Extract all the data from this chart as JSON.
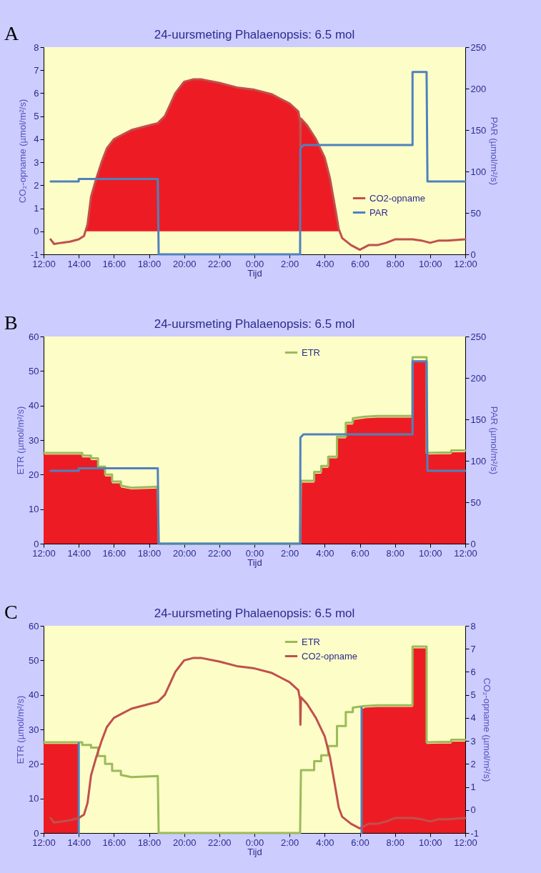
{
  "chart_data": [
    {
      "type": "line",
      "title": "24-uursmeting Phalaenopsis: 6.5 mol",
      "annotations": [
        "A"
      ],
      "xlabel": "Tijd",
      "ylabel": "CO₂-opname (µmol/m²/s)",
      "y2label": "PAR (µmol/m²/s)",
      "xlim": [
        "2000-01-01T12:00",
        "2000-01-02T12:00"
      ],
      "xticks": [
        {
          "value": "2000-01-01T12:00",
          "label": "12:00"
        },
        {
          "value": "2000-01-01T14:00",
          "label": "14:00"
        },
        {
          "value": "2000-01-01T16:00",
          "label": "16:00"
        },
        {
          "value": "2000-01-01T18:00",
          "label": "18:00"
        },
        {
          "value": "2000-01-01T20:00",
          "label": "20:00"
        },
        {
          "value": "2000-01-01T22:00",
          "label": "22:00"
        },
        {
          "value": "2000-01-02T00:00",
          "label": "0:00"
        },
        {
          "value": "2000-01-02T02:00",
          "label": "2:00"
        },
        {
          "value": "2000-01-02T04:00",
          "label": "4:00"
        },
        {
          "value": "2000-01-02T06:00",
          "label": "6:00"
        },
        {
          "value": "2000-01-02T08:00",
          "label": "8:00"
        },
        {
          "value": "2000-01-02T10:00",
          "label": "10:00"
        },
        {
          "value": "2000-01-02T12:00",
          "label": "12:00"
        }
      ],
      "ylim": [
        -1,
        8
      ],
      "yticks": [
        -1,
        0,
        1,
        2,
        3,
        4,
        5,
        6,
        7,
        8
      ],
      "y2lim": [
        0,
        250
      ],
      "y2ticks": [
        0,
        50,
        100,
        150,
        200,
        250
      ],
      "legend": "bottom right",
      "series": [
        {
          "type": "area",
          "color": "#ed1c24",
          "x": [
            "2000-01-01T14:24",
            "2000-01-01T14:30",
            "2000-01-01T14:42",
            "2000-01-01T15:00",
            "2000-01-01T15:18",
            "2000-01-01T15:36",
            "2000-01-01T16:00",
            "2000-01-01T16:30",
            "2000-01-01T17:00",
            "2000-01-01T17:30",
            "2000-01-01T18:00",
            "2000-01-01T18:30",
            "2000-01-01T18:54",
            "2000-01-01T19:12",
            "2000-01-01T19:30",
            "2000-01-01T20:00",
            "2000-01-01T20:30",
            "2000-01-01T21:00",
            "2000-01-01T22:00",
            "2000-01-01T23:00",
            "2000-01-02T00:00",
            "2000-01-02T01:00",
            "2000-01-02T01:30",
            "2000-01-02T02:00",
            "2000-01-02T02:30",
            "2000-01-02T02:36",
            "2000-01-02T02:37",
            "2000-01-02T02:39",
            "2000-01-02T03:00",
            "2000-01-02T03:30",
            "2000-01-02T04:00",
            "2000-01-02T04:18",
            "2000-01-02T04:36",
            "2000-01-02T04:48",
            "2000-01-02T04:48"
          ],
          "values": [
            0,
            0.3,
            1.5,
            2.3,
            3.0,
            3.6,
            4.0,
            4.2,
            4.4,
            4.5,
            4.6,
            4.7,
            5.0,
            5.5,
            6.0,
            6.5,
            6.6,
            6.6,
            6.45,
            6.25,
            6.15,
            5.95,
            5.75,
            5.55,
            5.2,
            4.8,
            3.7,
            4.9,
            4.6,
            4.0,
            3.2,
            2.3,
            1.0,
            0.1,
            0
          ]
        },
        {
          "name": "CO2-opname",
          "color": "#c0504d",
          "x": [
            "2000-01-01T12:24",
            "2000-01-01T12:36",
            "2000-01-01T13:00",
            "2000-01-01T13:30",
            "2000-01-01T14:00",
            "2000-01-01T14:18",
            "2000-01-01T14:30",
            "2000-01-01T14:42",
            "2000-01-01T15:00",
            "2000-01-01T15:18",
            "2000-01-01T15:36",
            "2000-01-01T16:00",
            "2000-01-01T16:30",
            "2000-01-01T17:00",
            "2000-01-01T17:30",
            "2000-01-01T18:00",
            "2000-01-01T18:30",
            "2000-01-01T18:54",
            "2000-01-01T19:12",
            "2000-01-01T19:30",
            "2000-01-01T20:00",
            "2000-01-01T20:30",
            "2000-01-01T21:00",
            "2000-01-01T22:00",
            "2000-01-01T23:00",
            "2000-01-02T00:00",
            "2000-01-02T01:00",
            "2000-01-02T01:30",
            "2000-01-02T02:00",
            "2000-01-02T02:30",
            "2000-01-02T02:36",
            "2000-01-02T02:37",
            "2000-01-02T02:39",
            "2000-01-02T03:00",
            "2000-01-02T03:30",
            "2000-01-02T04:00",
            "2000-01-02T04:18",
            "2000-01-02T04:36",
            "2000-01-02T04:48",
            "2000-01-02T05:00",
            "2000-01-02T05:30",
            "2000-01-02T06:00",
            "2000-01-02T06:30",
            "2000-01-02T07:00",
            "2000-01-02T07:30",
            "2000-01-02T08:00",
            "2000-01-02T09:00",
            "2000-01-02T09:30",
            "2000-01-02T10:00",
            "2000-01-02T10:30",
            "2000-01-02T11:00",
            "2000-01-02T12:00"
          ],
          "values": [
            -0.35,
            -0.55,
            -0.5,
            -0.45,
            -0.35,
            -0.2,
            0.3,
            1.5,
            2.3,
            3.0,
            3.6,
            4.0,
            4.2,
            4.4,
            4.5,
            4.6,
            4.7,
            5.0,
            5.5,
            6.0,
            6.5,
            6.6,
            6.6,
            6.45,
            6.25,
            6.15,
            5.95,
            5.75,
            5.55,
            5.2,
            4.8,
            3.7,
            4.9,
            4.6,
            4.0,
            3.2,
            2.3,
            1.0,
            0.1,
            -0.3,
            -0.6,
            -0.8,
            -0.6,
            -0.6,
            -0.5,
            -0.35,
            -0.35,
            -0.4,
            -0.5,
            -0.4,
            -0.4,
            -0.35
          ]
        },
        {
          "name": "PAR",
          "color": "#4f81bd",
          "axis": "y2",
          "x": [
            "2000-01-01T12:24",
            "2000-01-01T14:00",
            "2000-01-01T14:00",
            "2000-01-01T18:30",
            "2000-01-01T18:33",
            "2000-01-02T02:36",
            "2000-01-02T02:37",
            "2000-01-02T02:48",
            "2000-01-02T09:00",
            "2000-01-02T09:00",
            "2000-01-02T09:48",
            "2000-01-02T09:51",
            "2000-01-02T12:00"
          ],
          "values": [
            88,
            88,
            91,
            91,
            0,
            0,
            128,
            132,
            132,
            220,
            220,
            88,
            88
          ]
        }
      ]
    },
    {
      "type": "line",
      "title": "24-uursmeting Phalaenopsis: 6.5 mol",
      "annotations": [
        "B"
      ],
      "xlabel": "Tijd",
      "ylabel": "ETR (µmol/m²/s)",
      "y2label": "PAR (µmol/m²/s)",
      "xlim": [
        "2000-01-01T12:00",
        "2000-01-02T12:00"
      ],
      "xticks": [
        {
          "value": "2000-01-01T12:00",
          "label": "12:00"
        },
        {
          "value": "2000-01-01T14:00",
          "label": "14:00"
        },
        {
          "value": "2000-01-01T16:00",
          "label": "16:00"
        },
        {
          "value": "2000-01-01T18:00",
          "label": "18:00"
        },
        {
          "value": "2000-01-01T20:00",
          "label": "20:00"
        },
        {
          "value": "2000-01-01T22:00",
          "label": "22:00"
        },
        {
          "value": "2000-01-02T00:00",
          "label": "0:00"
        },
        {
          "value": "2000-01-02T02:00",
          "label": "2:00"
        },
        {
          "value": "2000-01-02T04:00",
          "label": "4:00"
        },
        {
          "value": "2000-01-02T06:00",
          "label": "6:00"
        },
        {
          "value": "2000-01-02T08:00",
          "label": "8:00"
        },
        {
          "value": "2000-01-02T10:00",
          "label": "10:00"
        },
        {
          "value": "2000-01-02T12:00",
          "label": "12:00"
        }
      ],
      "ylim": [
        0,
        60
      ],
      "yticks": [
        0,
        10,
        20,
        30,
        40,
        50,
        60
      ],
      "y2lim": [
        0,
        250
      ],
      "y2ticks": [
        0,
        50,
        100,
        150,
        200,
        250
      ],
      "legend": "top right",
      "series": [
        {
          "type": "area",
          "color": "#ed1c24",
          "x": [
            "2000-01-01T12:00",
            "2000-01-01T14:12",
            "2000-01-01T14:12",
            "2000-01-01T14:42",
            "2000-01-01T14:42",
            "2000-01-01T15:06",
            "2000-01-01T15:06",
            "2000-01-01T15:30",
            "2000-01-01T15:30",
            "2000-01-01T15:54",
            "2000-01-01T15:54",
            "2000-01-01T16:24",
            "2000-01-01T16:24",
            "2000-01-01T17:00",
            "2000-01-01T18:30",
            "2000-01-01T18:33",
            "2000-01-02T02:36",
            "2000-01-02T02:39",
            "2000-01-02T03:24",
            "2000-01-02T03:24",
            "2000-01-02T03:48",
            "2000-01-02T03:48",
            "2000-01-02T04:12",
            "2000-01-02T04:12",
            "2000-01-02T04:42",
            "2000-01-02T04:42",
            "2000-01-02T05:12",
            "2000-01-02T05:12",
            "2000-01-02T05:36",
            "2000-01-02T05:36",
            "2000-01-02T06:18",
            "2000-01-02T07:00",
            "2000-01-02T09:00",
            "2000-01-02T09:00",
            "2000-01-02T09:48",
            "2000-01-02T09:48",
            "2000-01-02T10:36",
            "2000-01-02T11:12",
            "2000-01-02T11:12",
            "2000-01-02T12:00"
          ],
          "values": [
            25.8,
            25.8,
            25,
            25,
            24.2,
            24.2,
            21.8,
            21.8,
            19.5,
            19.5,
            17.5,
            17.5,
            16.3,
            15.7,
            16,
            0,
            0,
            17.7,
            17.7,
            20.3,
            20.3,
            22,
            22,
            24.7,
            24.7,
            30.5,
            30.5,
            34.5,
            34.5,
            35.8,
            36.3,
            36.5,
            36.5,
            53,
            53,
            25.8,
            25.9,
            25.9,
            26.5,
            26.5
          ]
        },
        {
          "name": "ETR",
          "color": "#9bbb59",
          "x": [
            "2000-01-01T12:00",
            "2000-01-01T14:12",
            "2000-01-01T14:12",
            "2000-01-01T14:42",
            "2000-01-01T14:42",
            "2000-01-01T15:06",
            "2000-01-01T15:06",
            "2000-01-01T15:30",
            "2000-01-01T15:30",
            "2000-01-01T15:54",
            "2000-01-01T15:54",
            "2000-01-01T16:24",
            "2000-01-01T16:24",
            "2000-01-01T17:00",
            "2000-01-01T18:30",
            "2000-01-01T18:33",
            "2000-01-02T02:36",
            "2000-01-02T02:39",
            "2000-01-02T03:24",
            "2000-01-02T03:24",
            "2000-01-02T03:48",
            "2000-01-02T03:48",
            "2000-01-02T04:12",
            "2000-01-02T04:12",
            "2000-01-02T04:42",
            "2000-01-02T04:42",
            "2000-01-02T05:12",
            "2000-01-02T05:12",
            "2000-01-02T05:36",
            "2000-01-02T05:36",
            "2000-01-02T06:18",
            "2000-01-02T07:00",
            "2000-01-02T09:00",
            "2000-01-02T09:00",
            "2000-01-02T09:48",
            "2000-01-02T09:48",
            "2000-01-02T10:36",
            "2000-01-02T11:12",
            "2000-01-02T11:12",
            "2000-01-02T12:00"
          ],
          "values": [
            26.3,
            26.3,
            25.5,
            25.5,
            24.7,
            24.7,
            22.3,
            22.3,
            20,
            20,
            18,
            18,
            16.8,
            16.2,
            16.5,
            0,
            0,
            18.2,
            18.2,
            20.8,
            20.8,
            22.5,
            22.5,
            25.2,
            25.2,
            31,
            31,
            35,
            35,
            36.3,
            36.8,
            37,
            37,
            54,
            54,
            26.3,
            26.4,
            26.4,
            27,
            27
          ]
        },
        {
          "color": "#4f81bd",
          "axis": "y2",
          "x": [
            "2000-01-01T12:24",
            "2000-01-01T14:00",
            "2000-01-01T14:00",
            "2000-01-01T18:30",
            "2000-01-01T18:33",
            "2000-01-02T02:36",
            "2000-01-02T02:37",
            "2000-01-02T02:48",
            "2000-01-02T09:00",
            "2000-01-02T09:00",
            "2000-01-02T09:48",
            "2000-01-02T09:51",
            "2000-01-02T12:00"
          ],
          "values": [
            88,
            88,
            91,
            91,
            0,
            0,
            128,
            132,
            132,
            220,
            220,
            88,
            88
          ]
        }
      ]
    },
    {
      "type": "line",
      "title": "24-uursmeting Phalaenopsis: 6.5 mol",
      "annotations": [
        "C"
      ],
      "xlabel": "Tijd",
      "ylabel": "ETR (µmol/m²/s)",
      "y2label": "CO₂-opname (µmol/m²/s)",
      "xlim": [
        "2000-01-01T12:00",
        "2000-01-02T12:00"
      ],
      "xticks": [
        {
          "value": "2000-01-01T12:00",
          "label": "12:00"
        },
        {
          "value": "2000-01-01T14:00",
          "label": "14:00"
        },
        {
          "value": "2000-01-01T16:00",
          "label": "16:00"
        },
        {
          "value": "2000-01-01T18:00",
          "label": "18:00"
        },
        {
          "value": "2000-01-01T20:00",
          "label": "20:00"
        },
        {
          "value": "2000-01-01T22:00",
          "label": "22:00"
        },
        {
          "value": "2000-01-02T00:00",
          "label": "0:00"
        },
        {
          "value": "2000-01-02T02:00",
          "label": "2:00"
        },
        {
          "value": "2000-01-02T04:00",
          "label": "4:00"
        },
        {
          "value": "2000-01-02T06:00",
          "label": "6:00"
        },
        {
          "value": "2000-01-02T08:00",
          "label": "8:00"
        },
        {
          "value": "2000-01-02T10:00",
          "label": "10:00"
        },
        {
          "value": "2000-01-02T12:00",
          "label": "12:00"
        }
      ],
      "ylim": [
        0,
        60
      ],
      "yticks": [
        0,
        10,
        20,
        30,
        40,
        50,
        60
      ],
      "y2lim": [
        -1,
        8
      ],
      "y2ticks": [
        -1,
        0,
        1,
        2,
        3,
        4,
        5,
        6,
        7,
        8
      ],
      "legend": "top right",
      "series": [
        {
          "type": "area",
          "color": "#ed1c24",
          "x": [
            "2000-01-01T12:00",
            "2000-01-01T14:00",
            "2000-01-01T14:00",
            "2000-01-02T06:06",
            "2000-01-02T06:06",
            "2000-01-02T06:18",
            "2000-01-02T07:00",
            "2000-01-02T09:00",
            "2000-01-02T09:00",
            "2000-01-02T09:48",
            "2000-01-02T09:48",
            "2000-01-02T10:36",
            "2000-01-02T11:12",
            "2000-01-02T11:12",
            "2000-01-02T12:00"
          ],
          "values": [
            25.8,
            25.8,
            0,
            0,
            35.8,
            36.3,
            36.5,
            36.5,
            53.5,
            53.5,
            25.8,
            25.9,
            25.9,
            26.5,
            26.5
          ]
        },
        {
          "name": "ETR",
          "color": "#9bbb59",
          "x": [
            "2000-01-01T12:00",
            "2000-01-01T14:12",
            "2000-01-01T14:12",
            "2000-01-01T14:42",
            "2000-01-01T14:42",
            "2000-01-01T15:06",
            "2000-01-01T15:06",
            "2000-01-01T15:30",
            "2000-01-01T15:30",
            "2000-01-01T15:54",
            "2000-01-01T15:54",
            "2000-01-01T16:24",
            "2000-01-01T16:24",
            "2000-01-01T17:00",
            "2000-01-01T18:30",
            "2000-01-01T18:33",
            "2000-01-02T02:36",
            "2000-01-02T02:39",
            "2000-01-02T03:24",
            "2000-01-02T03:24",
            "2000-01-02T03:48",
            "2000-01-02T03:48",
            "2000-01-02T04:12",
            "2000-01-02T04:12",
            "2000-01-02T04:42",
            "2000-01-02T04:42",
            "2000-01-02T05:12",
            "2000-01-02T05:12",
            "2000-01-02T05:36",
            "2000-01-02T05:36",
            "2000-01-02T06:18",
            "2000-01-02T07:00",
            "2000-01-02T09:00",
            "2000-01-02T09:00",
            "2000-01-02T09:48",
            "2000-01-02T09:48",
            "2000-01-02T10:36",
            "2000-01-02T11:12",
            "2000-01-02T11:12",
            "2000-01-02T12:00"
          ],
          "values": [
            26.3,
            26.3,
            25.5,
            25.5,
            24.7,
            24.7,
            22.3,
            22.3,
            20,
            20,
            18,
            18,
            16.8,
            16.2,
            16.5,
            0,
            0,
            18.2,
            18.2,
            20.8,
            20.8,
            22.5,
            22.5,
            25.2,
            25.2,
            31,
            31,
            35,
            35,
            36.3,
            36.8,
            37,
            37,
            54,
            54,
            26.3,
            26.4,
            26.4,
            27,
            27
          ]
        },
        {
          "color": "#4f81bd",
          "x": [
            "2000-01-01T14:00",
            "2000-01-01T14:00"
          ],
          "values": [
            0,
            26
          ]
        },
        {
          "color": "#4f81bd",
          "x": [
            "2000-01-02T06:06",
            "2000-01-02T06:06"
          ],
          "values": [
            0,
            36.3
          ]
        },
        {
          "name": "CO2-opname",
          "color": "#c0504d",
          "axis": "y2",
          "x": [
            "2000-01-01T12:24",
            "2000-01-01T12:36",
            "2000-01-01T13:00",
            "2000-01-01T13:30",
            "2000-01-01T14:00",
            "2000-01-01T14:18",
            "2000-01-01T14:30",
            "2000-01-01T14:42",
            "2000-01-01T15:00",
            "2000-01-01T15:18",
            "2000-01-01T15:36",
            "2000-01-01T16:00",
            "2000-01-01T16:30",
            "2000-01-01T17:00",
            "2000-01-01T17:30",
            "2000-01-01T18:00",
            "2000-01-01T18:30",
            "2000-01-01T18:54",
            "2000-01-01T19:12",
            "2000-01-01T19:30",
            "2000-01-01T20:00",
            "2000-01-01T20:30",
            "2000-01-01T21:00",
            "2000-01-01T22:00",
            "2000-01-01T23:00",
            "2000-01-02T00:00",
            "2000-01-02T01:00",
            "2000-01-02T01:30",
            "2000-01-02T02:00",
            "2000-01-02T02:30",
            "2000-01-02T02:36",
            "2000-01-02T02:37",
            "2000-01-02T02:39",
            "2000-01-02T03:00",
            "2000-01-02T03:30",
            "2000-01-02T04:00",
            "2000-01-02T04:18",
            "2000-01-02T04:36",
            "2000-01-02T04:48",
            "2000-01-02T05:00",
            "2000-01-02T05:30",
            "2000-01-02T06:00",
            "2000-01-02T06:30",
            "2000-01-02T07:00",
            "2000-01-02T07:30",
            "2000-01-02T08:00",
            "2000-01-02T09:00",
            "2000-01-02T09:30",
            "2000-01-02T10:00",
            "2000-01-02T10:30",
            "2000-01-02T11:00",
            "2000-01-02T12:00"
          ],
          "values": [
            -0.35,
            -0.55,
            -0.5,
            -0.45,
            -0.35,
            -0.2,
            0.3,
            1.5,
            2.3,
            3.0,
            3.6,
            4.0,
            4.2,
            4.4,
            4.5,
            4.6,
            4.7,
            5.0,
            5.5,
            6.0,
            6.5,
            6.6,
            6.6,
            6.45,
            6.25,
            6.15,
            5.95,
            5.75,
            5.55,
            5.2,
            4.8,
            3.7,
            4.9,
            4.6,
            4.0,
            3.2,
            2.3,
            1.0,
            0.1,
            -0.3,
            -0.6,
            -0.8,
            -0.6,
            -0.6,
            -0.5,
            -0.35,
            -0.35,
            -0.4,
            -0.5,
            -0.4,
            -0.4,
            -0.35
          ]
        }
      ]
    }
  ]
}
